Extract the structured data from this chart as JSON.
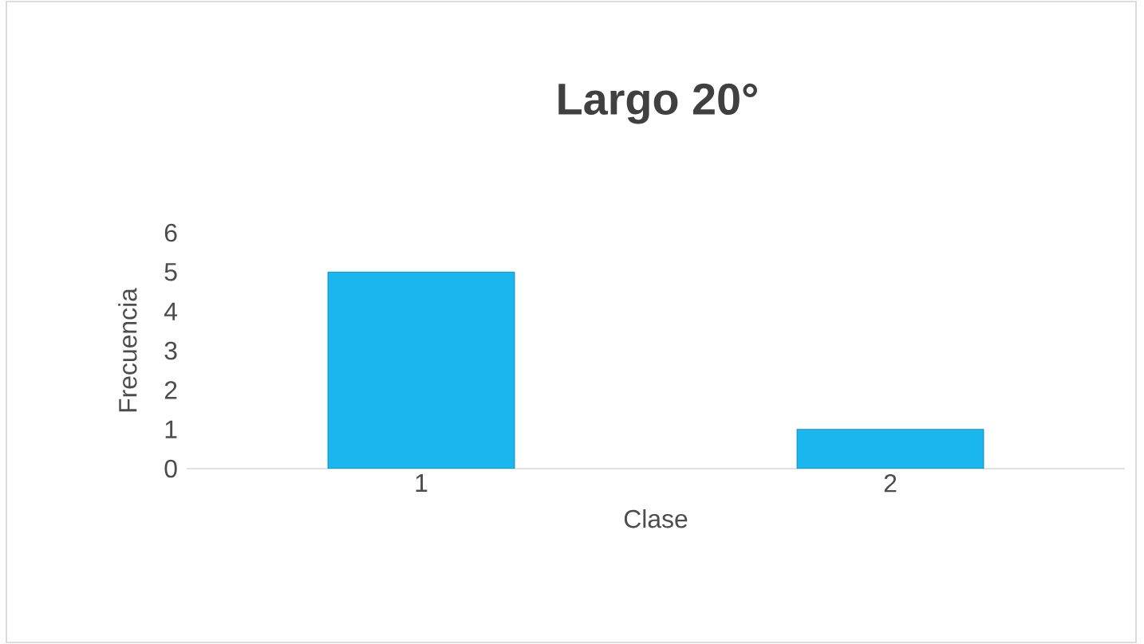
{
  "chart_data": {
    "type": "bar",
    "title": "Largo 20°",
    "xlabel": "Clase",
    "ylabel": "Frecuencia",
    "categories": [
      "1",
      "2"
    ],
    "values": [
      5,
      1
    ],
    "color": "#1ab6ee",
    "ylim": [
      0,
      6
    ],
    "yticks": [
      0,
      1,
      2,
      3,
      4,
      5,
      6
    ]
  }
}
